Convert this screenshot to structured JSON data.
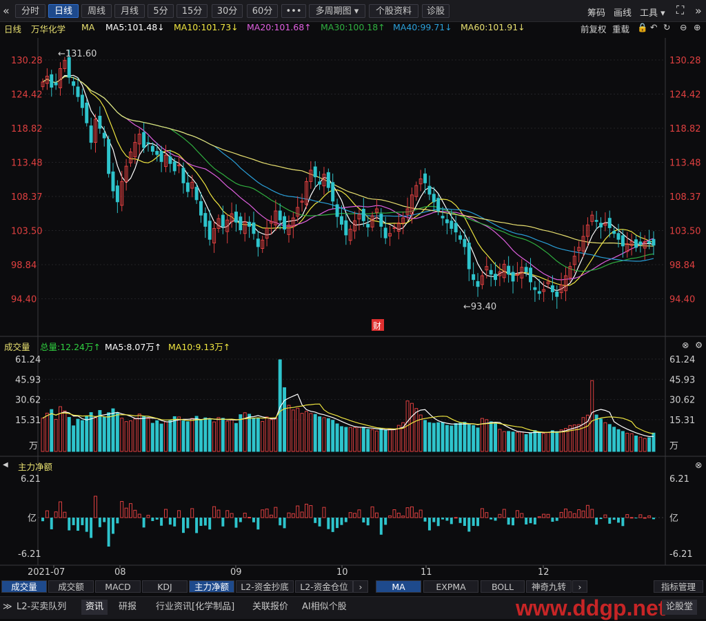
{
  "toolbar": {
    "back_icon": "«",
    "tabs": [
      {
        "label": "分时"
      },
      {
        "label": "日线"
      },
      {
        "label": "周线"
      },
      {
        "label": "月线"
      },
      {
        "label": "5分"
      },
      {
        "label": "15分"
      },
      {
        "label": "30分"
      },
      {
        "label": "60分"
      },
      {
        "label": "•••"
      },
      {
        "label": "多周期图 ▾"
      },
      {
        "label": "个股资料"
      },
      {
        "label": "诊股"
      }
    ],
    "right": {
      "chips": "筹码",
      "draw": "画线",
      "tools": "工具 ▾"
    }
  },
  "ma_bar": {
    "period": "日线",
    "stock": "万华化学",
    "ma_label": "MA",
    "ma5": "MA5:101.48↓",
    "ma10": "MA10:101.73↓",
    "ma20": "MA20:101.68↑",
    "ma30": "MA30:100.18↑",
    "ma40": "MA40:99.71↓",
    "ma60": "MA60:101.91↓",
    "adjust": "前复权",
    "reset": "重载"
  },
  "colors": {
    "up": "#e04040",
    "down": "#2ec4cc",
    "ma5": "#ffffff",
    "ma10": "#f0e640",
    "ma20": "#e060e0",
    "ma30": "#30b040",
    "ma40": "#2a9fd8",
    "ma60": "#e8e070",
    "price_axis": "#e04040"
  },
  "price_axis": [
    "130.28",
    "124.42",
    "118.82",
    "113.48",
    "108.37",
    "103.50",
    "98.84",
    "94.40"
  ],
  "price_annotations": {
    "high": "131.60",
    "low": "93.40",
    "fin_badge": "财"
  },
  "volume": {
    "title": "成交量",
    "total": "总量:12.24万↑",
    "ma5": "MA5:8.07万↑",
    "ma10": "MA10:9.13万↑",
    "axis": [
      "61.24",
      "45.93",
      "30.62",
      "15.31"
    ],
    "unit": "万"
  },
  "netflow": {
    "title": "主力净额",
    "axis_top": "6.21",
    "axis_mid": "亿",
    "axis_bottom": "-6.21"
  },
  "x_axis": [
    "2021-07",
    "08",
    "09",
    "10",
    "11",
    "12"
  ],
  "indicator_tabs": [
    "成交量",
    "成交额",
    "MACD",
    "KDJ",
    "主力净额",
    "L2-资金抄底",
    "L2-资金仓位"
  ],
  "ma_tabs": [
    "MA",
    "EXPMA",
    "BOLL",
    "神奇九转"
  ],
  "indicator_manage": "指标管理",
  "footer_tabs": [
    "L2-买卖队列",
    "资讯",
    "研报",
    "行业资讯[化学制品]",
    "关联报价",
    "AI相似个股"
  ],
  "footer_right": "论股堂",
  "watermark": "www.ddgp.net",
  "chart_data": {
    "type": "candlestick",
    "title": "万华化学 日线",
    "period": "2021-07 to 2021-12",
    "ylim": [
      93.4,
      131.6
    ],
    "series_ma": [
      {
        "name": "MA5",
        "value": 101.48
      },
      {
        "name": "MA10",
        "value": 101.73
      },
      {
        "name": "MA20",
        "value": 101.68
      },
      {
        "name": "MA30",
        "value": 100.18
      },
      {
        "name": "MA40",
        "value": 99.71
      },
      {
        "name": "MA60",
        "value": 101.91
      }
    ],
    "close": [
      126.5,
      127.5,
      125.6,
      126.0,
      128.8,
      130.2,
      127.3,
      125.9,
      124.0,
      122.2,
      119.7,
      116.6,
      120.3,
      118.8,
      117.3,
      111.8,
      109.2,
      107.6,
      110.6,
      112.9,
      115.1,
      116.6,
      117.9,
      115.8,
      116.5,
      115.2,
      114.7,
      113.6,
      114.6,
      113.3,
      112.2,
      113.1,
      110.4,
      109.1,
      110.5,
      107.9,
      105.7,
      104.1,
      102.3,
      103.8,
      105.2,
      104.1,
      105.0,
      105.9,
      104.7,
      103.6,
      104.7,
      104.1,
      103.1,
      101.3,
      102.2,
      103.8,
      104.8,
      106.3,
      105.0,
      103.7,
      104.3,
      105.3,
      106.8,
      107.7,
      110.6,
      112.3,
      111.3,
      110.2,
      111.7,
      109.7,
      107.7,
      105.5,
      104.4,
      102.9,
      103.7,
      104.9,
      105.8,
      104.9,
      104.0,
      105.6,
      106.6,
      104.1,
      102.5,
      103.1,
      103.9,
      104.6,
      105.3,
      106.6,
      108.6,
      110.0,
      111.0,
      110.4,
      108.7,
      107.6,
      106.3,
      105.3,
      104.6,
      103.8,
      103.3,
      102.3,
      101.3,
      98.3,
      96.9,
      96.0,
      97.4,
      98.6,
      97.6,
      96.9,
      97.9,
      98.9,
      97.6,
      96.7,
      97.6,
      98.5,
      97.9,
      96.6,
      95.6,
      95.1,
      95.6,
      96.6,
      95.3,
      94.7,
      96.2,
      97.4,
      98.6,
      100.0,
      101.2,
      102.7,
      104.3,
      105.7,
      104.8,
      104.0,
      104.5,
      103.9,
      103.1,
      102.3,
      101.4,
      101.7,
      102.0,
      101.2,
      101.6,
      102.0,
      101.8,
      101.5
    ],
    "volume_wan": [
      22.1,
      25.4,
      27.8,
      21.3,
      29.7,
      26.9,
      22.6,
      17.0,
      21.4,
      20.5,
      23.1,
      25.8,
      22.4,
      27.2,
      22.9,
      25.7,
      28.3,
      25.7,
      22.1,
      19.8,
      20.3,
      21.6,
      24.8,
      23.5,
      21.9,
      18.7,
      20.4,
      18.2,
      19.6,
      20.8,
      23.1,
      22.9,
      20.3,
      19.7,
      21.9,
      23.3,
      20.6,
      22.3,
      21.1,
      19.6,
      22.5,
      22.0,
      20.1,
      20.9,
      18.6,
      24.4,
      25.7,
      24.7,
      22.1,
      22.2,
      19.9,
      22.9,
      21.1,
      22.2,
      60.8,
      42.3,
      30.6,
      27.5,
      28.7,
      25.3,
      26.6,
      25.2,
      24.6,
      23.0,
      22.4,
      21.8,
      20.7,
      18.3,
      16.5,
      16.0,
      15.9,
      15.8,
      16.2,
      16.1,
      14.7,
      14.5,
      13.6,
      15.1,
      14.1,
      14.7,
      14.7,
      17.3,
      19.1,
      33.5,
      31.9,
      28.5,
      24.2,
      20.6,
      19.1,
      18.7,
      19.1,
      19.2,
      17.3,
      16.9,
      18.5,
      18.8,
      19.4,
      17.7,
      17.2,
      15.6,
      21.9,
      21.1,
      19.7,
      18.6,
      14.7,
      13.2,
      13.3,
      12.9,
      12.7,
      12.9,
      11.2,
      12.3,
      13.9,
      12.9,
      12.0,
      12.5,
      13.8,
      13.2,
      14.3,
      15.3,
      17.2,
      17.6,
      17.8,
      22.5,
      24.1,
      47.0,
      24.2,
      21.5,
      19.1,
      17.9,
      16.1,
      14.5,
      13.3,
      12.1,
      11.8,
      10.3,
      9.5,
      8.6,
      9.1,
      12.2
    ]
  }
}
